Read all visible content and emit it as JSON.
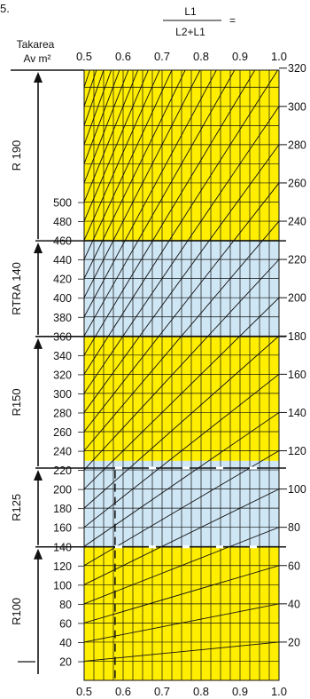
{
  "figure_number": "5.",
  "formula": {
    "numerator": "L1",
    "denominator": "L2+L1",
    "equals": "="
  },
  "left_axis": {
    "title_line1": "Takarea",
    "title_line2": "Av m²",
    "ticks": [
      20,
      40,
      60,
      80,
      100,
      120,
      140,
      160,
      180,
      200,
      220,
      240,
      260,
      280,
      300,
      320,
      340,
      360,
      380,
      400,
      420,
      440,
      460,
      480,
      500
    ]
  },
  "top_axis_ticks": [
    "0.5",
    "0.6",
    "0.7",
    "0.8",
    "0.9",
    "1.0"
  ],
  "bottom_axis_ticks": [
    "0.5",
    "0.6",
    "0.7",
    "0.8",
    "0.9",
    "1.0"
  ],
  "right_axis_ticks": [
    20,
    40,
    60,
    80,
    100,
    120,
    140,
    160,
    180,
    200,
    220,
    240,
    260,
    280,
    300,
    320
  ],
  "bands": [
    {
      "label": "R100",
      "from": 20,
      "to": 140,
      "color": "#ffee00"
    },
    {
      "label": "R125",
      "from": 140,
      "to": 230,
      "color": "#cfe6f5"
    },
    {
      "label": "R150",
      "from": 230,
      "to": 360,
      "color": "#ffee00"
    },
    {
      "label": "RTRA 140",
      "from": 360,
      "to": 460,
      "color": "#cfe6f5"
    },
    {
      "label": "R 190",
      "from": 460,
      "to": 640,
      "color": "#ffee00"
    }
  ],
  "dashed_marker_ratio": 0.58,
  "colors": {
    "yellow": "#ffee00",
    "blue": "#cfe6f5",
    "ink": "#111111"
  }
}
